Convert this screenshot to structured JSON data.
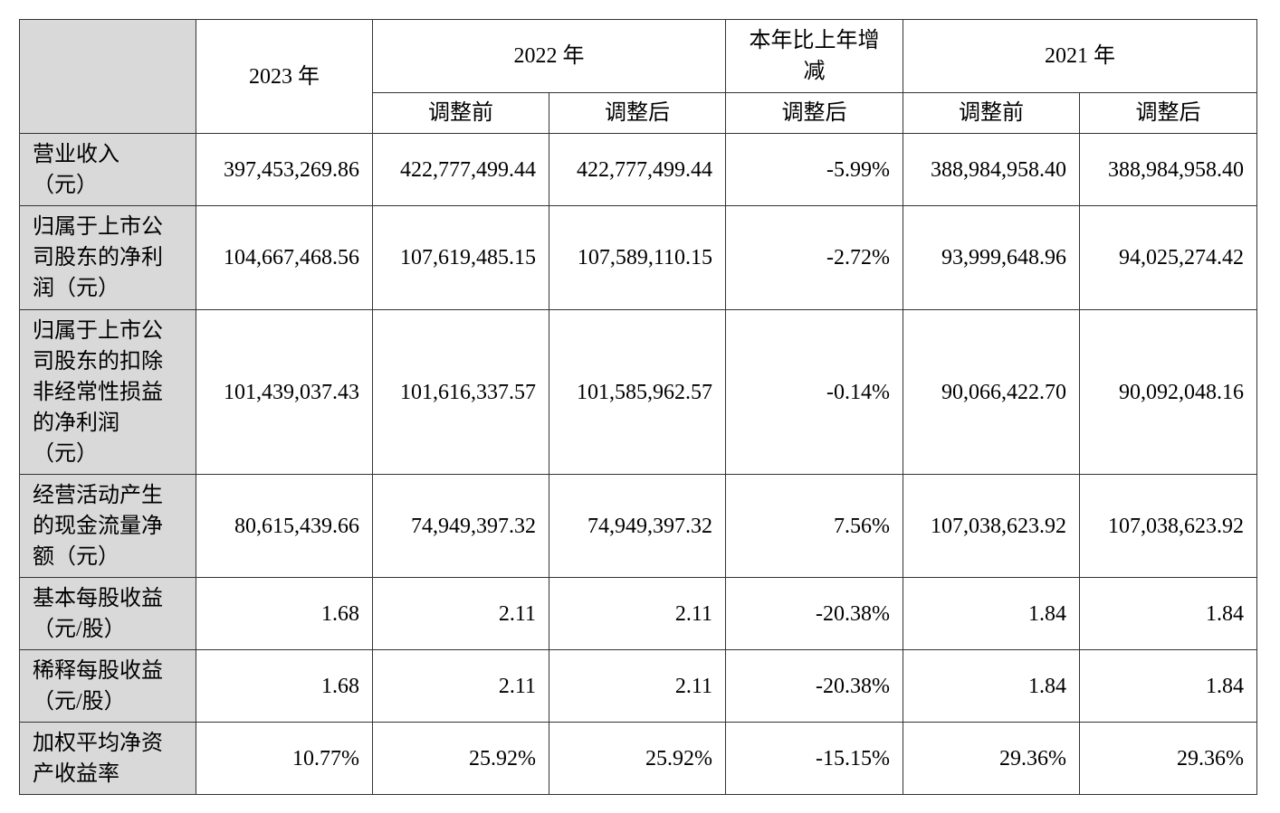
{
  "header": {
    "corner": "",
    "year_2023": "2023 年",
    "year_2022": "2022 年",
    "yoy_change": "本年比上年增减",
    "year_2021": "2021 年",
    "before_adjustment": "调整前",
    "after_adjustment": "调整后"
  },
  "rows": [
    {
      "label_lines": [
        "营业收入",
        "（元）"
      ],
      "values": [
        "397,453,269.86",
        "422,777,499.44",
        "422,777,499.44",
        "-5.99%",
        "388,984,958.40",
        "388,984,958.40"
      ]
    },
    {
      "label_lines": [
        "归属于上市公",
        "司股东的净利",
        "润（元）"
      ],
      "values": [
        "104,667,468.56",
        "107,619,485.15",
        "107,589,110.15",
        "-2.72%",
        "93,999,648.96",
        "94,025,274.42"
      ]
    },
    {
      "label_lines": [
        "归属于上市公",
        "司股东的扣除",
        "非经常性损益",
        "的净利润",
        "（元）"
      ],
      "values": [
        "101,439,037.43",
        "101,616,337.57",
        "101,585,962.57",
        "-0.14%",
        "90,066,422.70",
        "90,092,048.16"
      ]
    },
    {
      "label_lines": [
        "经营活动产生",
        "的现金流量净",
        "额（元）"
      ],
      "values": [
        "80,615,439.66",
        "74,949,397.32",
        "74,949,397.32",
        "7.56%",
        "107,038,623.92",
        "107,038,623.92"
      ]
    },
    {
      "label_lines": [
        "基本每股收益",
        "（元/股）"
      ],
      "values": [
        "1.68",
        "2.11",
        "2.11",
        "-20.38%",
        "1.84",
        "1.84"
      ]
    },
    {
      "label_lines": [
        "稀释每股收益",
        "（元/股）"
      ],
      "values": [
        "1.68",
        "2.11",
        "2.11",
        "-20.38%",
        "1.84",
        "1.84"
      ]
    },
    {
      "label_lines": [
        "加权平均净资",
        "产收益率"
      ],
      "values": [
        "10.77%",
        "25.92%",
        "25.92%",
        "-15.15%",
        "29.36%",
        "29.36%"
      ]
    }
  ]
}
